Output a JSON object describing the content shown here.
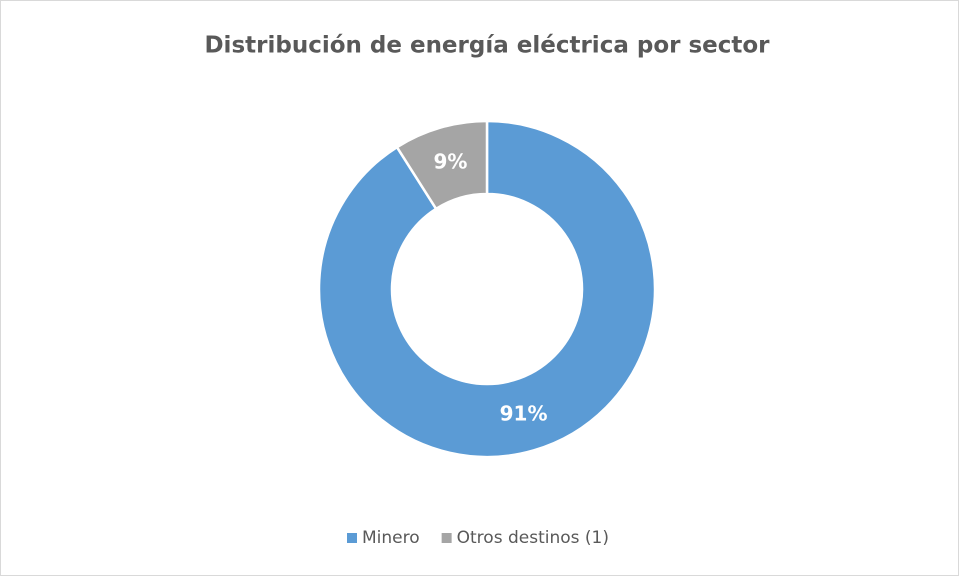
{
  "chart_data": {
    "type": "donut",
    "title": "Distribución de energía eléctrica por sector",
    "categories": [
      "Minero",
      "Otros destinos (1)"
    ],
    "values": [
      91,
      9
    ],
    "value_labels": [
      "91%",
      "9%"
    ],
    "colors": [
      "#5b9bd5",
      "#a5a5a5"
    ],
    "legend": "bottom"
  }
}
